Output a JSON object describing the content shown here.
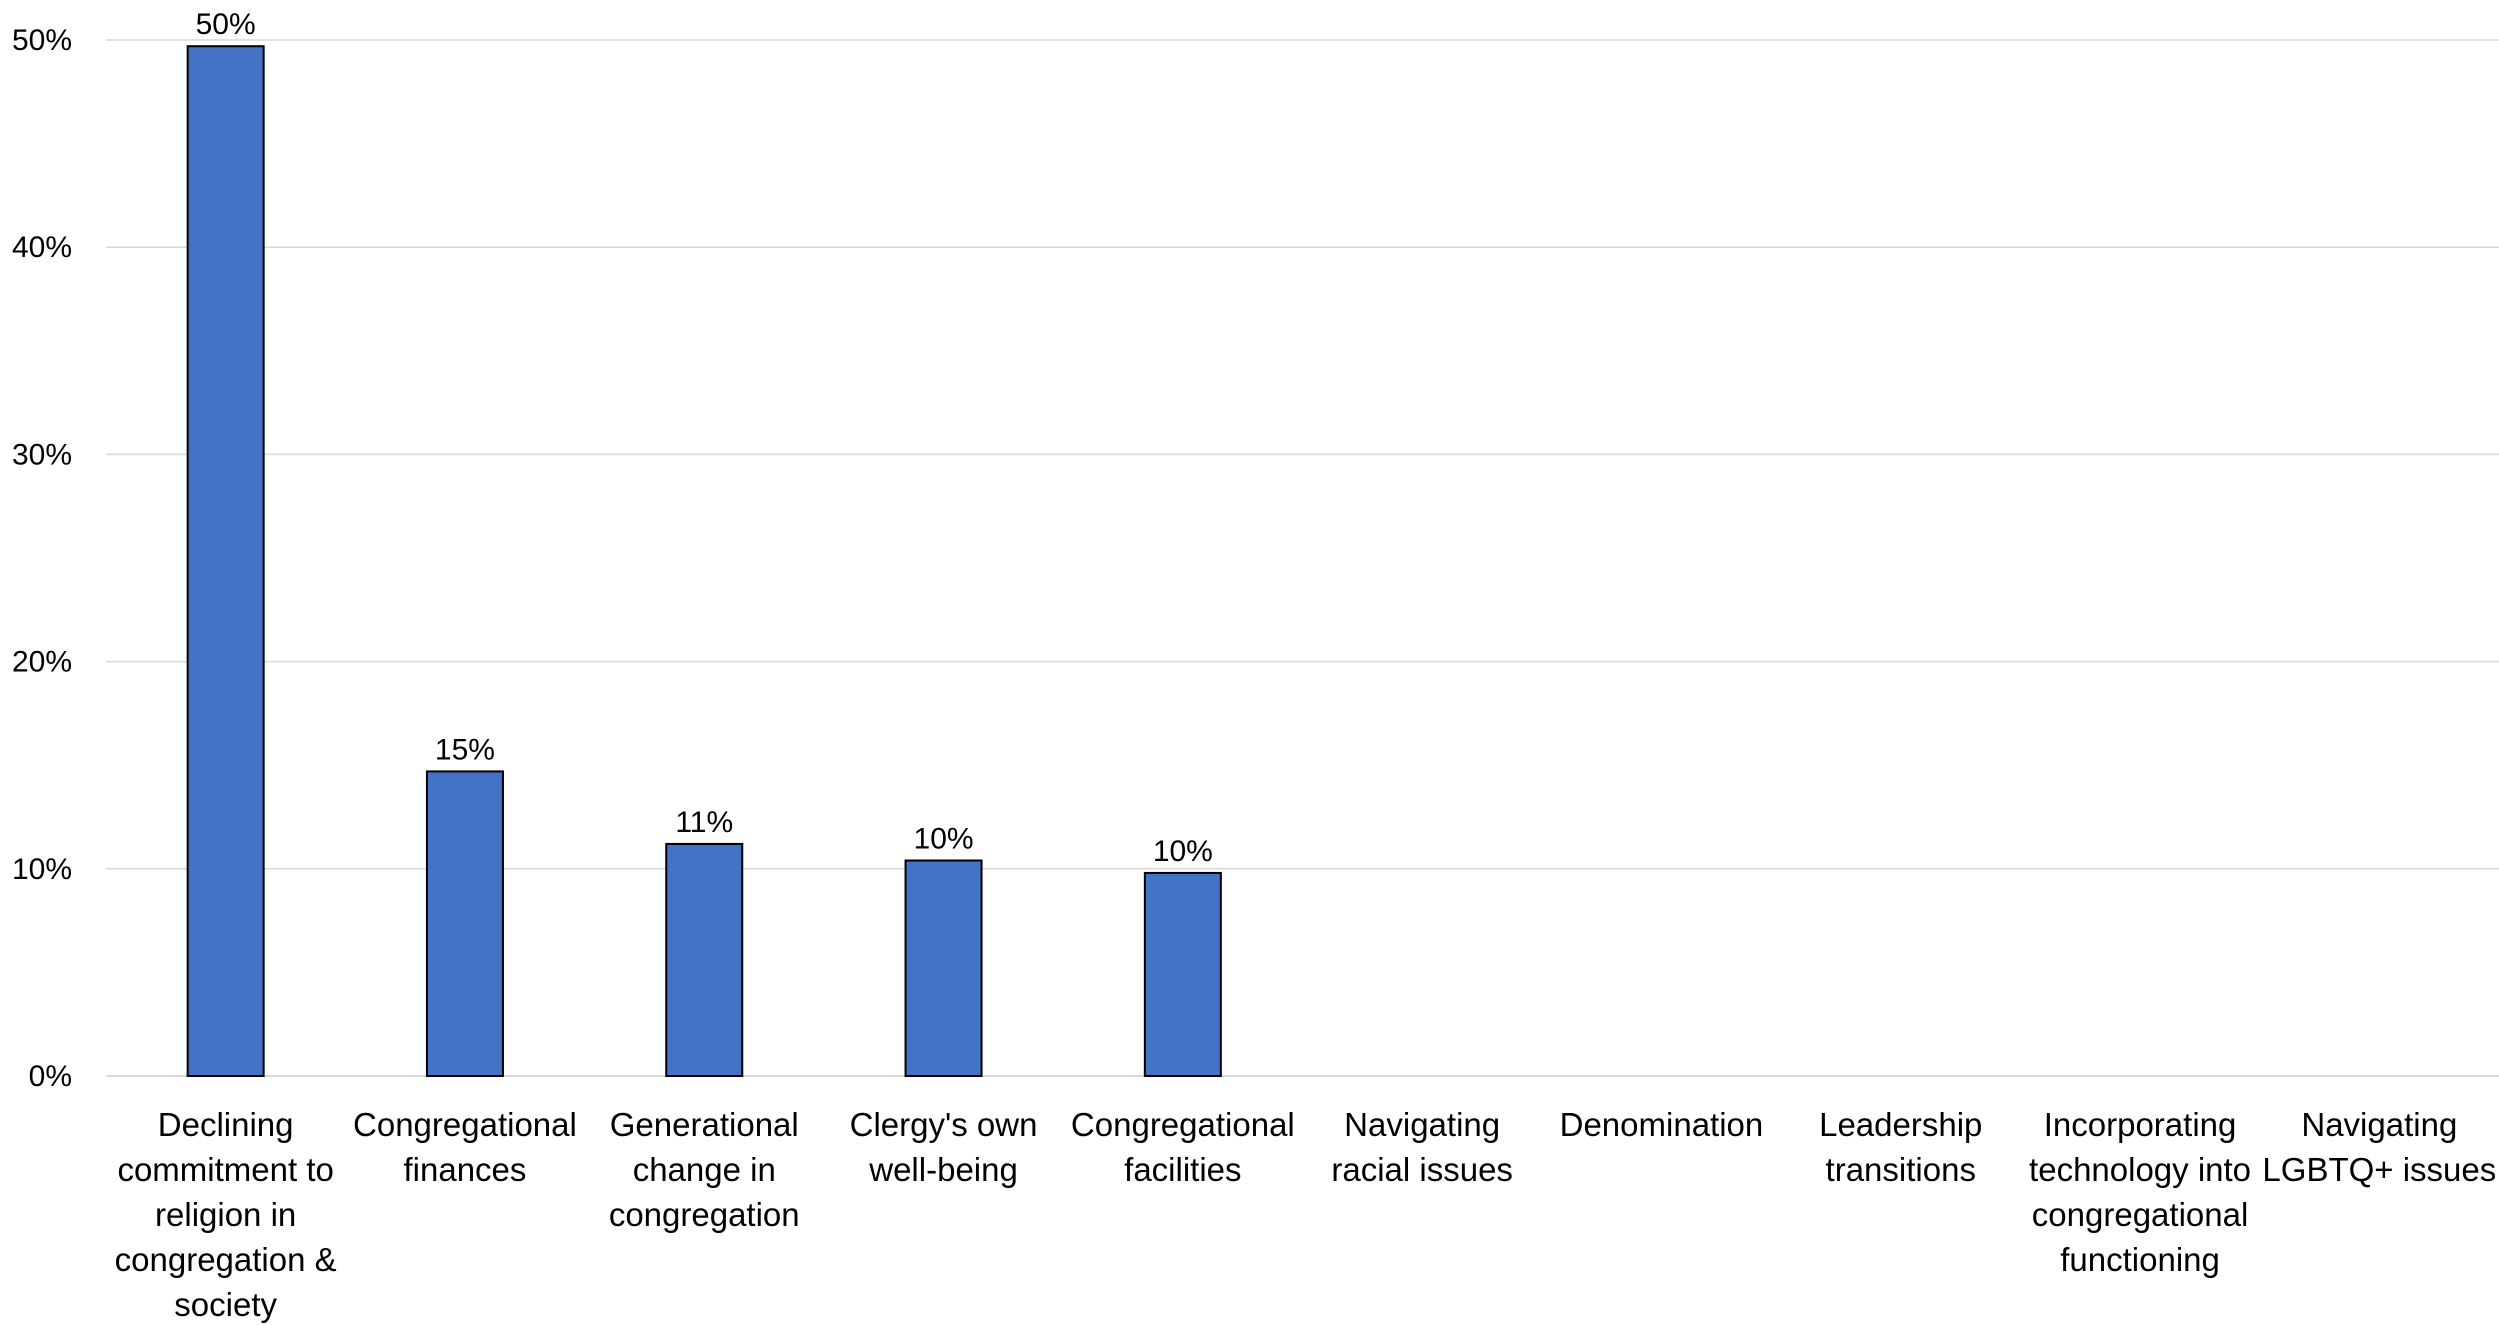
{
  "chart_data": {
    "type": "bar",
    "title": "",
    "xlabel": "",
    "ylabel": "",
    "ylim": [
      0,
      50
    ],
    "y_ticks": [
      "0%",
      "10%",
      "20%",
      "30%",
      "40%",
      "50%"
    ],
    "y_tick_values": [
      0,
      10,
      20,
      30,
      40,
      50
    ],
    "grid": true,
    "legend": "none",
    "bar_color": "#4472C4",
    "bar_outline_color": "#000000",
    "grid_color": "#D9D9D9",
    "categories": [
      [
        "Declining",
        "commitment to",
        "religion in",
        "congregation &",
        "society"
      ],
      [
        "Congregational",
        "finances"
      ],
      [
        "Generational",
        "change in",
        "congregation"
      ],
      [
        "Clergy's own",
        "well-being"
      ],
      [
        "Congregational",
        "facilities"
      ],
      [
        "Navigating",
        "racial issues"
      ],
      [
        "Denomination"
      ],
      [
        "Leadership",
        "transitions"
      ],
      [
        "Incorporating",
        "technology into",
        "congregational",
        "functioning"
      ],
      [
        "Navigating",
        "LGBTQ+ issues"
      ]
    ],
    "values": [
      49.7,
      14.7,
      11.2,
      10.4,
      9.8,
      0,
      0,
      0,
      0,
      0
    ],
    "data_labels": [
      "50%",
      "15%",
      "11%",
      "10%",
      "10%",
      "",
      "",
      "",
      "",
      ""
    ]
  }
}
